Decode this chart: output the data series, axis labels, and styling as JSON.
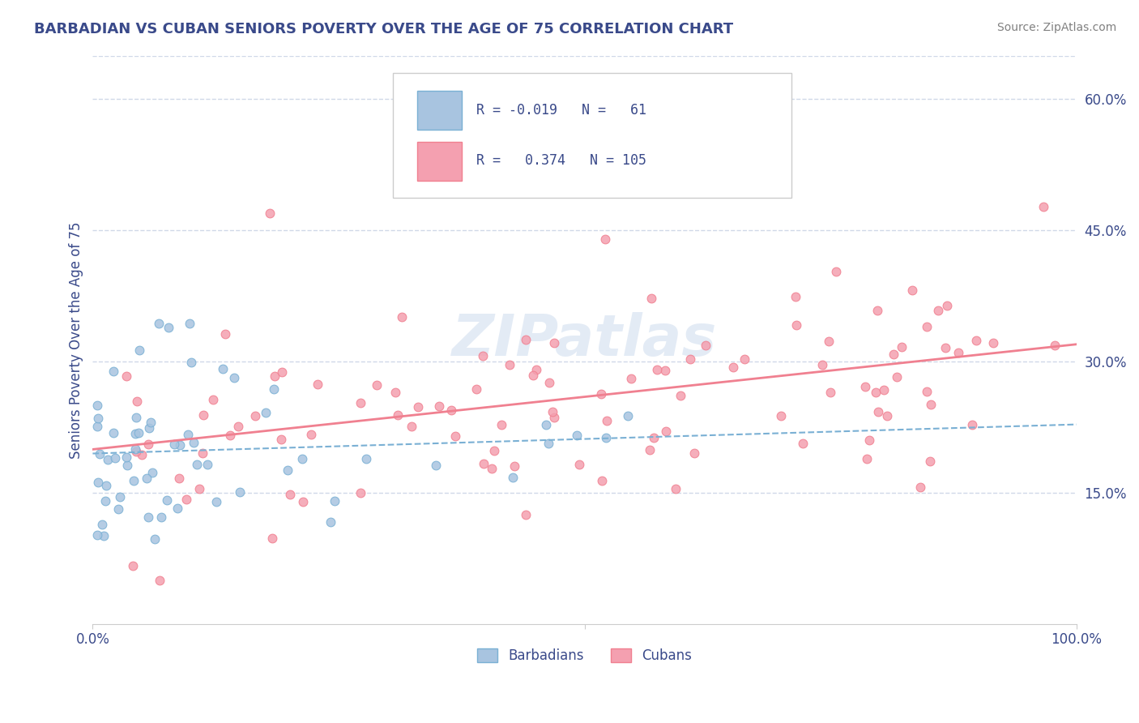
{
  "title": "BARBADIAN VS CUBAN SENIORS POVERTY OVER THE AGE OF 75 CORRELATION CHART",
  "source": "Source: ZipAtlas.com",
  "ylabel": "Seniors Poverty Over the Age of 75",
  "xlim": [
    0,
    1.0
  ],
  "ylim": [
    0,
    0.65
  ],
  "y_tick_labels_right": [
    "15.0%",
    "30.0%",
    "45.0%",
    "60.0%"
  ],
  "y_ticks_right": [
    0.15,
    0.3,
    0.45,
    0.6
  ],
  "barbadian_R": -0.019,
  "barbadian_N": 61,
  "cuban_R": 0.374,
  "cuban_N": 105,
  "barbadian_color": "#a8c4e0",
  "cuban_color": "#f4a0b0",
  "barbadian_line_color": "#7ab0d4",
  "cuban_line_color": "#f08090",
  "legend_text_color": "#3a4a8a",
  "title_color": "#3a4a8a",
  "watermark": "ZIPatlas",
  "grid_color": "#d0d8e8"
}
